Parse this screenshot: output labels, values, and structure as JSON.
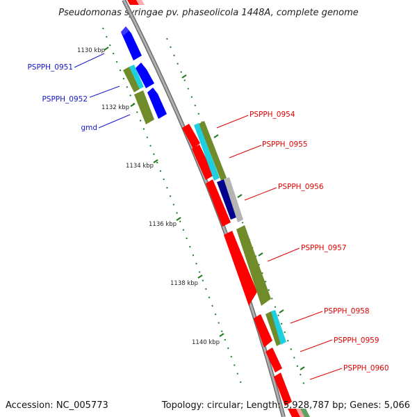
{
  "title": "Pseudomonas syringae pv. phaseolicola 1448A, complete genome",
  "footer": {
    "accession": "Accession: NC_005773",
    "topology": "Topology: circular; Length: 5,928,787 bp; Genes: 5,066"
  },
  "scale_labels": [
    "1130 kbp",
    "1132 kbp",
    "1134 kbp",
    "1136 kbp",
    "1138 kbp",
    "1140 kbp"
  ],
  "gene_labels": {
    "left": [
      "PSPPH_0951",
      "PSPPH_0952",
      "gmd"
    ],
    "right": [
      "PSPPH_0954",
      "PSPPH_0955",
      "PSPPH_0956",
      "PSPPH_0957",
      "PSPPH_0958",
      "PSPPH_0959",
      "PSPPH_0960"
    ]
  },
  "colors": {
    "cds_forward": "#0000ff",
    "cds_reverse": "#ff0000",
    "cog_cyan": "#1ecfe0",
    "cog_olive": "#6f8b2a",
    "cog_navy": "#00008c",
    "cog_gray": "#b4b4b4",
    "backbone": "#8c8c8c",
    "tick": "#1f7a1f"
  }
}
